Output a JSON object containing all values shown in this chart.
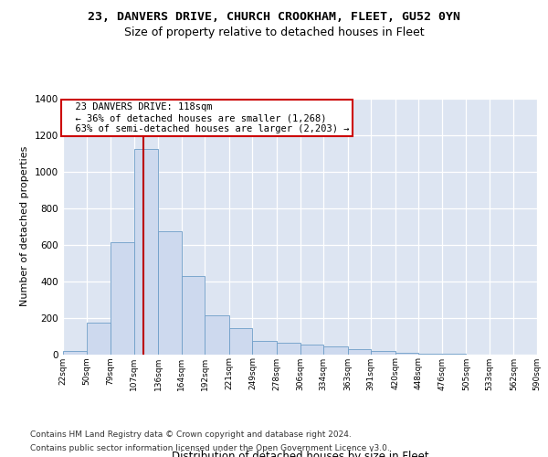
{
  "title1": "23, DANVERS DRIVE, CHURCH CROOKHAM, FLEET, GU52 0YN",
  "title2": "Size of property relative to detached houses in Fleet",
  "xlabel": "Distribution of detached houses by size in Fleet",
  "ylabel": "Number of detached properties",
  "footnote1": "Contains HM Land Registry data © Crown copyright and database right 2024.",
  "footnote2": "Contains public sector information licensed under the Open Government Licence v3.0.",
  "annotation_line1": "23 DANVERS DRIVE: 118sqm",
  "annotation_line2": "← 36% of detached houses are smaller (1,268)",
  "annotation_line3": "63% of semi-detached houses are larger (2,203) →",
  "property_size": 118,
  "bar_color": "#cdd9ee",
  "bar_edge_color": "#6e9ec8",
  "redline_color": "#bb0000",
  "bg_color": "#dde5f2",
  "ylim": [
    0,
    1400
  ],
  "yticks": [
    0,
    200,
    400,
    600,
    800,
    1000,
    1200,
    1400
  ],
  "bin_edges": [
    22,
    50,
    79,
    107,
    136,
    164,
    192,
    221,
    249,
    278,
    306,
    334,
    363,
    391,
    420,
    448,
    476,
    505,
    533,
    562,
    590
  ],
  "bar_heights": [
    18,
    175,
    615,
    1125,
    675,
    430,
    215,
    145,
    75,
    65,
    55,
    45,
    28,
    18,
    10,
    5,
    3,
    0,
    0,
    0
  ],
  "title1_fontsize": 9.5,
  "title2_fontsize": 9.0,
  "ylabel_fontsize": 8.0,
  "xlabel_fontsize": 8.5,
  "footnote_fontsize": 6.5,
  "tick_fontsize": 6.5,
  "ytick_fontsize": 7.5,
  "annot_fontsize": 7.5
}
